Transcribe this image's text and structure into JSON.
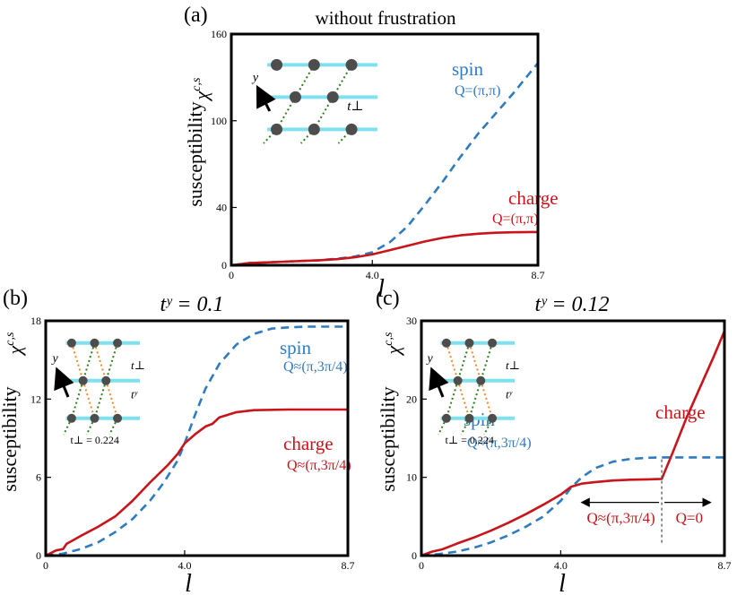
{
  "colors": {
    "spin": "#2f7bbf",
    "charge": "#c8151b",
    "lattice_line": "#7fe0f0",
    "site": "#4d4d4d",
    "t_perp_bond": "#2e7d1e",
    "t_y_bond": "#f08a2c",
    "frame": "#000000"
  },
  "chart_data": [
    {
      "panel": "a",
      "type": "line",
      "panel_label": "(a)",
      "title": "without frustration",
      "xlabel": "l",
      "ylabel": "susceptibility",
      "ylabel_symbol": "χ",
      "ylabel_superscript": "c,s",
      "xlim": [
        0,
        8.7
      ],
      "ylim": [
        0,
        160
      ],
      "xticks": [
        {
          "v": 0,
          "label": "0"
        },
        {
          "v": 4.0,
          "label": "4.0"
        },
        {
          "v": 8.7,
          "label": "8.7"
        }
      ],
      "yticks": [
        {
          "v": 0,
          "label": "0"
        },
        {
          "v": 40,
          "label": "40"
        },
        {
          "v": 100,
          "label": "100"
        },
        {
          "v": 160,
          "label": "160"
        }
      ],
      "series": [
        {
          "name": "spin",
          "label": "spin",
          "q_label": "Q=(π,π)",
          "style": "dashed",
          "x": [
            0,
            0.5,
            1,
            1.5,
            2,
            2.5,
            3,
            3.5,
            4,
            4.5,
            5,
            5.5,
            6,
            6.5,
            7,
            7.5,
            8,
            8.5,
            8.7
          ],
          "y": [
            0,
            1.5,
            2,
            2.5,
            3,
            3.5,
            4.5,
            6,
            9,
            16,
            27,
            42,
            58,
            75,
            91,
            105,
            119,
            134,
            140
          ]
        },
        {
          "name": "charge",
          "label": "charge",
          "q_label": "Q=(π,π)",
          "style": "solid",
          "x": [
            0,
            0.5,
            1,
            1.5,
            2,
            2.5,
            3,
            3.5,
            4,
            4.5,
            5,
            5.5,
            6,
            6.5,
            7,
            7.5,
            8,
            8.5,
            8.7
          ],
          "y": [
            0,
            1.5,
            2,
            2.5,
            3,
            3.5,
            4.2,
            5.5,
            7.5,
            10.5,
            13.5,
            16.5,
            19,
            20.7,
            21.8,
            22.5,
            22.8,
            23,
            23
          ]
        }
      ],
      "inset": {
        "type": "square",
        "t_perp_label": "t⊥",
        "t_y_label": "",
        "param": "",
        "axis": "y"
      }
    },
    {
      "panel": "b",
      "type": "line",
      "panel_label": "(b)",
      "title": "tʸ = 0.1",
      "xlabel": "l",
      "ylabel": "susceptibility",
      "ylabel_symbol": "χ",
      "ylabel_superscript": "c,s",
      "xlim": [
        0,
        8.7
      ],
      "ylim": [
        0,
        18
      ],
      "xticks": [
        {
          "v": 0,
          "label": "0"
        },
        {
          "v": 4.0,
          "label": "4.0"
        },
        {
          "v": 8.7,
          "label": "8.7"
        }
      ],
      "yticks": [
        {
          "v": 0,
          "label": "0"
        },
        {
          "v": 6,
          "label": "6"
        },
        {
          "v": 12,
          "label": "12"
        },
        {
          "v": 18,
          "label": "18"
        }
      ],
      "series": [
        {
          "name": "spin",
          "label": "spin",
          "q_label": "Q≈(π,3π/4)",
          "style": "dashed",
          "x": [
            0,
            0.5,
            1,
            1.5,
            2,
            2.5,
            3,
            3.4,
            3.8,
            4.0,
            4.3,
            4.6,
            5,
            5.5,
            6,
            6.5,
            7,
            7.5,
            8,
            8.7
          ],
          "y": [
            0,
            0.15,
            0.5,
            1.0,
            1.8,
            2.8,
            4.2,
            5.6,
            7.3,
            8.6,
            10.8,
            12.8,
            14.7,
            16.2,
            17.0,
            17.4,
            17.5,
            17.55,
            17.55,
            17.55
          ]
        },
        {
          "name": "charge",
          "label": "charge",
          "q_label": "Q≈(π,3π/4)",
          "style": "solid",
          "x": [
            0,
            0.3,
            0.5,
            0.6,
            0.7,
            1,
            1.5,
            2,
            2.5,
            3,
            3.5,
            3.8,
            4.0,
            4.3,
            4.6,
            4.8,
            5.0,
            5.5,
            6,
            7,
            8,
            8.7
          ],
          "y": [
            0,
            0.4,
            0.5,
            0.9,
            1.05,
            1.5,
            2.2,
            3.0,
            4.2,
            5.6,
            6.9,
            7.8,
            8.6,
            9.3,
            9.9,
            10.1,
            10.6,
            11.0,
            11.15,
            11.2,
            11.2,
            11.2
          ]
        }
      ],
      "inset": {
        "type": "triangular",
        "t_perp_label": "t⊥",
        "t_y_label": "tʸ",
        "param": "t⊥ = 0.224",
        "axis": "y"
      }
    },
    {
      "panel": "c",
      "type": "line",
      "panel_label": "(c)",
      "title": "tʸ = 0.12",
      "xlabel": "l",
      "ylabel": "susceptibility",
      "ylabel_symbol": "χ",
      "ylabel_superscript": "c,s",
      "xlim": [
        0,
        8.7
      ],
      "ylim": [
        0,
        30
      ],
      "xticks": [
        {
          "v": 0,
          "label": "0"
        },
        {
          "v": 4.0,
          "label": "4.0"
        },
        {
          "v": 8.7,
          "label": "8.7"
        }
      ],
      "yticks": [
        {
          "v": 0,
          "label": "0"
        },
        {
          "v": 10,
          "label": "10"
        },
        {
          "v": 20,
          "label": "20"
        },
        {
          "v": 30,
          "label": "30"
        }
      ],
      "series": [
        {
          "name": "spin",
          "label": "spin",
          "q_label": "Q≈(π,3π/4)",
          "style": "dashed",
          "x": [
            0,
            0.5,
            1,
            1.5,
            2,
            2.5,
            3,
            3.5,
            4,
            4.3,
            4.6,
            5,
            5.5,
            6,
            6.5,
            7,
            7.5,
            8,
            8.7
          ],
          "y": [
            0,
            0.2,
            0.5,
            1.0,
            1.7,
            2.6,
            3.7,
            5.0,
            7.0,
            8.7,
            10.0,
            11.2,
            12.0,
            12.35,
            12.5,
            12.55,
            12.55,
            12.55,
            12.55
          ]
        },
        {
          "name": "charge",
          "label": "charge",
          "q_label": "",
          "style": "solid",
          "x": [
            0,
            0.3,
            0.6,
            1,
            1.5,
            2,
            2.5,
            3,
            3.5,
            4,
            4.3,
            4.6,
            5,
            5.5,
            6,
            6.5,
            6.9,
            7.2,
            7.6,
            8,
            8.4,
            8.7
          ],
          "y": [
            0,
            0.5,
            0.8,
            1.5,
            2.3,
            3.2,
            4.2,
            5.3,
            6.5,
            7.8,
            8.8,
            9.2,
            9.4,
            9.6,
            9.7,
            9.75,
            9.8,
            13.0,
            17.5,
            21.5,
            25.5,
            28.7
          ]
        }
      ],
      "transition_x": 6.9,
      "regions": [
        {
          "label": "Q≈(π,3π/4)",
          "from": 4.6,
          "to": 6.9
        },
        {
          "label": "Q=0",
          "from": 6.9,
          "to": 8.3
        }
      ],
      "inset": {
        "type": "triangular",
        "t_perp_label": "t⊥",
        "t_y_label": "tʸ",
        "param": "t⊥ = 0.224",
        "axis": "y"
      }
    }
  ]
}
